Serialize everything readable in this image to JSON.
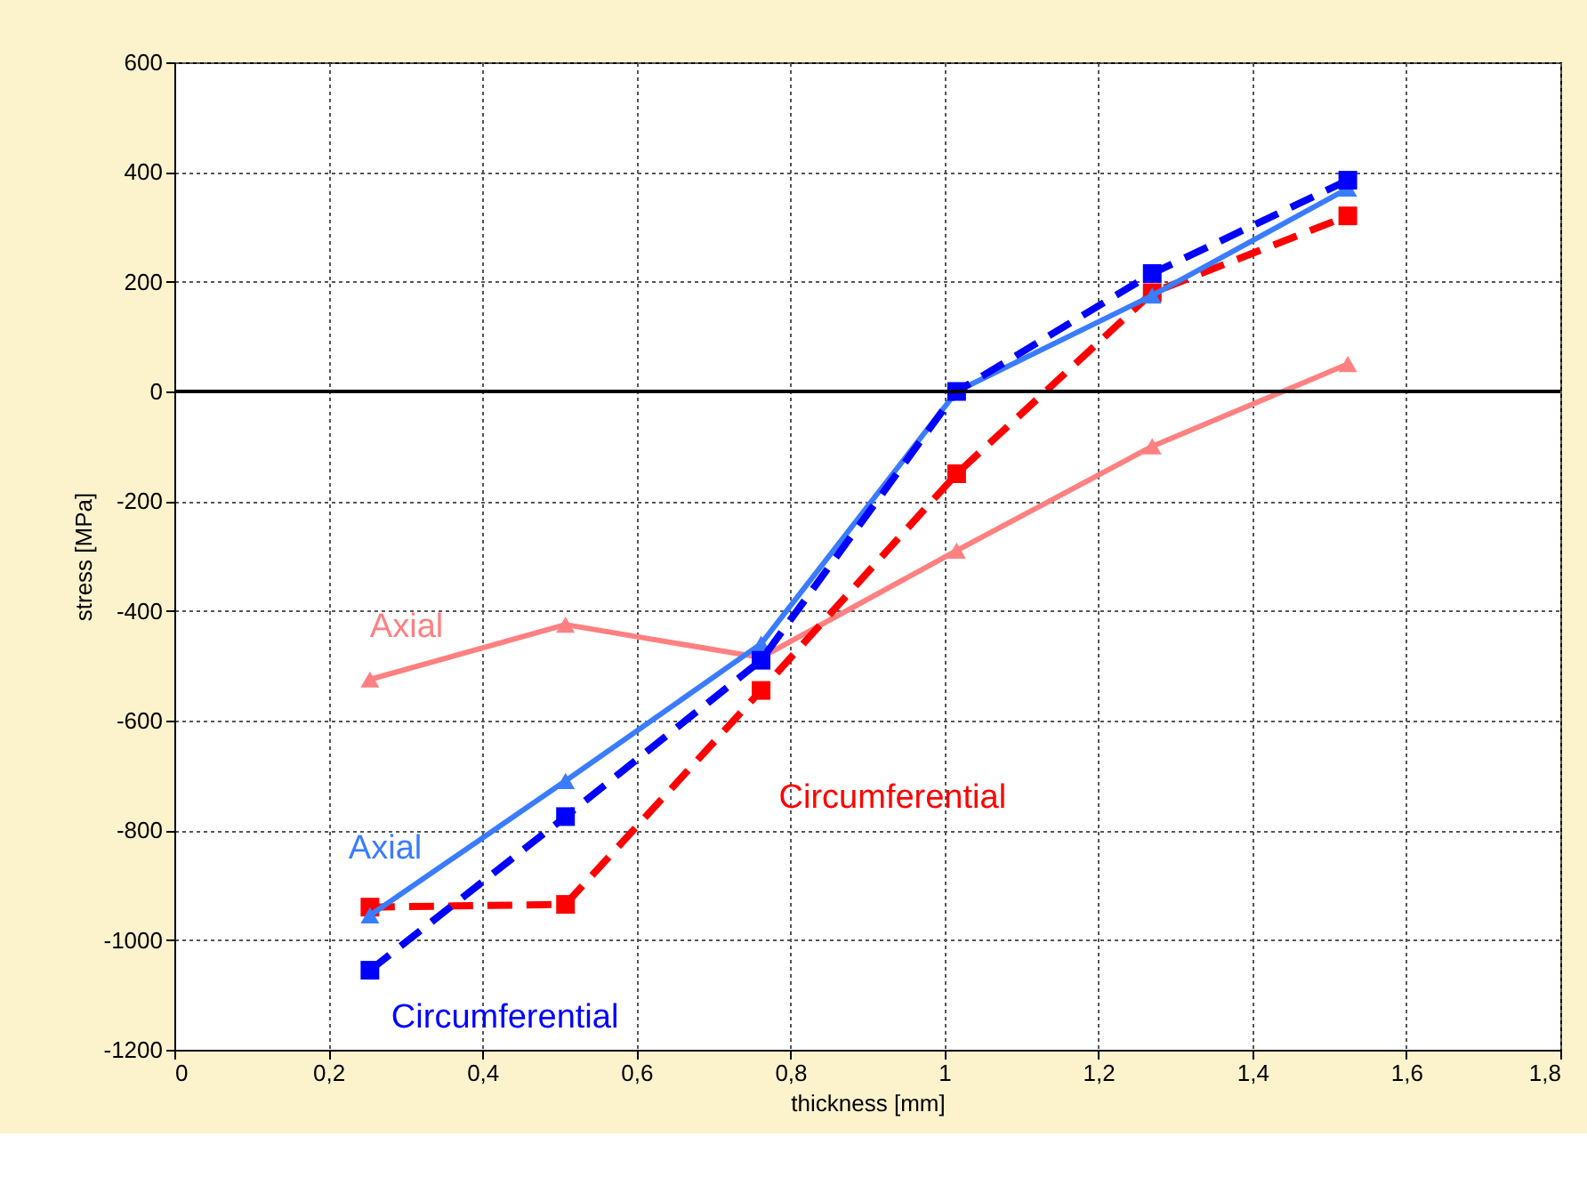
{
  "chart_data": {
    "type": "line",
    "xlabel": "thickness [mm]",
    "ylabel": "stress [MPa]",
    "x": [
      0.254,
      0.508,
      0.762,
      1.016,
      1.27,
      1.524
    ],
    "series": [
      {
        "name": "Axial",
        "color": "#ff8080",
        "marker": "triangle",
        "line_style": "solid",
        "values": [
          -525,
          -425,
          -485,
          -290,
          -100,
          50
        ]
      },
      {
        "name": "Circumferential",
        "color": "#ff0000",
        "marker": "square",
        "line_style": "dashed",
        "values": [
          -940,
          -935,
          -545,
          -150,
          180,
          320
        ]
      },
      {
        "name": "Axial",
        "color": "#3a7cff",
        "marker": "triangle",
        "line_style": "solid",
        "values": [
          -955,
          -710,
          -460,
          0,
          175,
          370
        ]
      },
      {
        "name": "Circumferential",
        "color": "#0000ff",
        "marker": "square",
        "line_style": "dashed",
        "values": [
          -1055,
          -775,
          -490,
          0,
          215,
          385
        ]
      }
    ],
    "xlim": [
      0,
      1.8
    ],
    "xticks": [
      0,
      {
        "value": 0.2,
        "label": "0,2"
      },
      {
        "value": 0.4,
        "label": "0,4"
      },
      {
        "value": 0.6,
        "label": "0,6"
      },
      {
        "value": 0.8,
        "label": "0,8"
      },
      1,
      {
        "value": 1.2,
        "label": "1,2"
      },
      {
        "value": 1.4,
        "label": "1,4"
      },
      {
        "value": 1.6,
        "label": "1,6"
      },
      {
        "value": 1.8,
        "label": "1,8"
      }
    ],
    "ylim": [
      -1200,
      600
    ],
    "yticks": [
      -1200,
      -1000,
      -800,
      -600,
      -400,
      -200,
      0,
      200,
      400,
      600
    ],
    "ref_lines": [
      {
        "axis": "y",
        "value": 0,
        "color": "#000000"
      }
    ],
    "grid": true
  }
}
